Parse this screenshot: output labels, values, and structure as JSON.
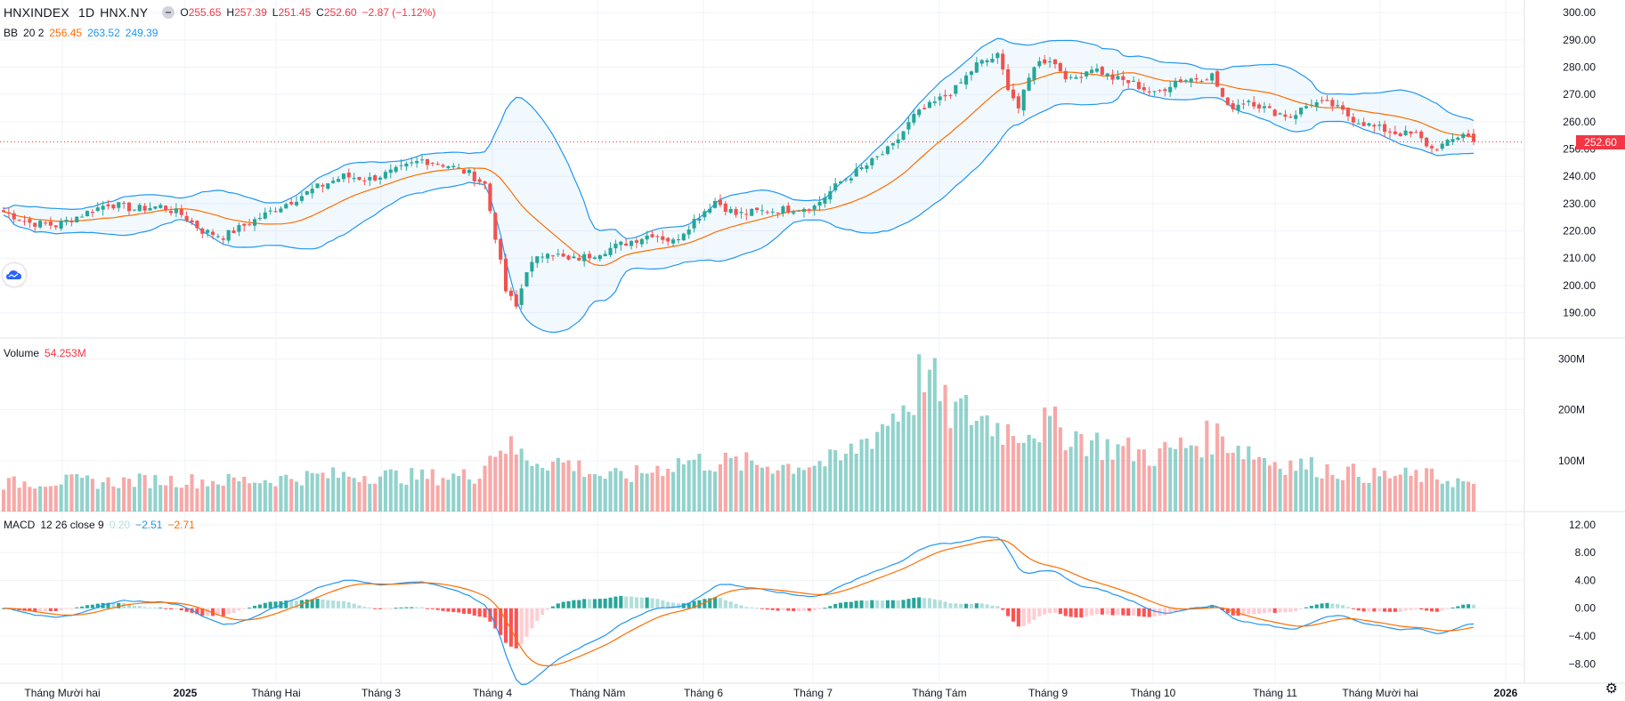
{
  "header": {
    "symbol": "HNXINDEX",
    "interval": "1D",
    "exchange": "HNX.NY",
    "o_label": "O",
    "o_value": "255.65",
    "h_label": "H",
    "h_value": "257.39",
    "l_label": "L",
    "l_value": "251.45",
    "c_label": "C",
    "c_value": "252.60",
    "change": "−2.87 (−1.12%)"
  },
  "bb_legend": {
    "name": "BB",
    "params": "20 2",
    "basis": "256.45",
    "upper": "263.52",
    "lower": "249.39"
  },
  "volume_legend": {
    "name": "Volume",
    "value": "54.253M"
  },
  "macd_legend": {
    "name": "MACD",
    "params": "12 26 close 9",
    "hist": "0.20",
    "macd": "−2.51",
    "signal": "−2.71"
  },
  "last_price_tag": "252.60",
  "colors": {
    "up": "#26a69a",
    "down": "#ef5350",
    "bb_basis": "#ff6d00",
    "bb_band": "#2196f3",
    "macd": "#2196f3",
    "signal": "#ff6d00"
  },
  "icons": {
    "logo": "tradingview-cloud-icon",
    "settings": "gear-icon",
    "legend_toggle": "minus-icon"
  },
  "chart_data": {
    "type": "candlestick",
    "x_ticks": [
      "Tháng Mười hai",
      "2025",
      "Tháng Hai",
      "Tháng 3",
      "Tháng 4",
      "Tháng Năm",
      "Tháng 6",
      "Tháng 7",
      "Tháng Tám",
      "Tháng 9",
      "Tháng 10",
      "Tháng 11",
      "Tháng Mười hai",
      "2026"
    ],
    "price_axis": {
      "ticks": [
        190,
        200,
        210,
        220,
        230,
        240,
        250,
        260,
        270,
        280,
        290,
        300
      ],
      "ylim": [
        184,
        302
      ]
    },
    "volume_axis": {
      "ticks": [
        "100M",
        "200M",
        "300M"
      ],
      "ylim": [
        0,
        320
      ]
    },
    "macd_axis": {
      "ticks": [
        "−8.00",
        "−4.00",
        "0.00",
        "4.00",
        "8.00",
        "12.00"
      ],
      "ylim": [
        -10,
        13
      ]
    },
    "price_anchors": [
      [
        0,
        227
      ],
      [
        5,
        223
      ],
      [
        10,
        222
      ],
      [
        15,
        226
      ],
      [
        20,
        230
      ],
      [
        25,
        228
      ],
      [
        30,
        229
      ],
      [
        34,
        226
      ],
      [
        38,
        220
      ],
      [
        42,
        218
      ],
      [
        46,
        222
      ],
      [
        50,
        226
      ],
      [
        55,
        231
      ],
      [
        60,
        236
      ],
      [
        65,
        240
      ],
      [
        70,
        239
      ],
      [
        75,
        242
      ],
      [
        80,
        246
      ],
      [
        85,
        244
      ],
      [
        89,
        241
      ],
      [
        92,
        237
      ],
      [
        94,
        218
      ],
      [
        96,
        198
      ],
      [
        98,
        192
      ],
      [
        100,
        206
      ],
      [
        104,
        213
      ],
      [
        108,
        209
      ],
      [
        112,
        211
      ],
      [
        118,
        215
      ],
      [
        124,
        219
      ],
      [
        128,
        216
      ],
      [
        132,
        224
      ],
      [
        136,
        231
      ],
      [
        140,
        226
      ],
      [
        144,
        227
      ],
      [
        150,
        228
      ],
      [
        155,
        229
      ],
      [
        160,
        238
      ],
      [
        165,
        244
      ],
      [
        170,
        251
      ],
      [
        174,
        262
      ],
      [
        178,
        267
      ],
      [
        182,
        272
      ],
      [
        186,
        281
      ],
      [
        190,
        284
      ],
      [
        192,
        273
      ],
      [
        194,
        265
      ],
      [
        197,
        281
      ],
      [
        200,
        283
      ],
      [
        204,
        275
      ],
      [
        208,
        280
      ],
      [
        212,
        276
      ],
      [
        216,
        274
      ],
      [
        220,
        270
      ],
      [
        224,
        275
      ],
      [
        228,
        276
      ],
      [
        231,
        277
      ],
      [
        234,
        265
      ],
      [
        238,
        268
      ],
      [
        242,
        264
      ],
      [
        246,
        262
      ],
      [
        250,
        267
      ],
      [
        254,
        266
      ],
      [
        258,
        261
      ],
      [
        262,
        258
      ],
      [
        266,
        256
      ],
      [
        270,
        255
      ],
      [
        273,
        250
      ],
      [
        276,
        252
      ],
      [
        279,
        256
      ],
      [
        281,
        252.6
      ]
    ],
    "volume_anchors": [
      [
        0,
        55
      ],
      [
        10,
        60
      ],
      [
        20,
        58
      ],
      [
        30,
        62
      ],
      [
        40,
        60
      ],
      [
        50,
        62
      ],
      [
        60,
        70
      ],
      [
        70,
        72
      ],
      [
        80,
        68
      ],
      [
        90,
        70
      ],
      [
        95,
        135
      ],
      [
        100,
        105
      ],
      [
        108,
        95
      ],
      [
        115,
        68
      ],
      [
        120,
        70
      ],
      [
        130,
        100
      ],
      [
        140,
        95
      ],
      [
        150,
        90
      ],
      [
        160,
        100
      ],
      [
        168,
        170
      ],
      [
        174,
        230
      ],
      [
        176,
        290
      ],
      [
        180,
        200
      ],
      [
        186,
        190
      ],
      [
        192,
        160
      ],
      [
        200,
        170
      ],
      [
        210,
        130
      ],
      [
        220,
        110
      ],
      [
        232,
        150
      ],
      [
        242,
        100
      ],
      [
        252,
        85
      ],
      [
        262,
        70
      ],
      [
        272,
        70
      ],
      [
        281,
        54
      ]
    ],
    "last_close": 252.6,
    "bb": {
      "length": 20,
      "mult": 2,
      "basis_last": 256.45,
      "upper_last": 263.52,
      "lower_last": 249.39
    },
    "macd": {
      "fast": 12,
      "slow": 26,
      "signal": 9,
      "hist_last": 0.2,
      "macd_last": -2.51,
      "signal_last": -2.71
    }
  }
}
